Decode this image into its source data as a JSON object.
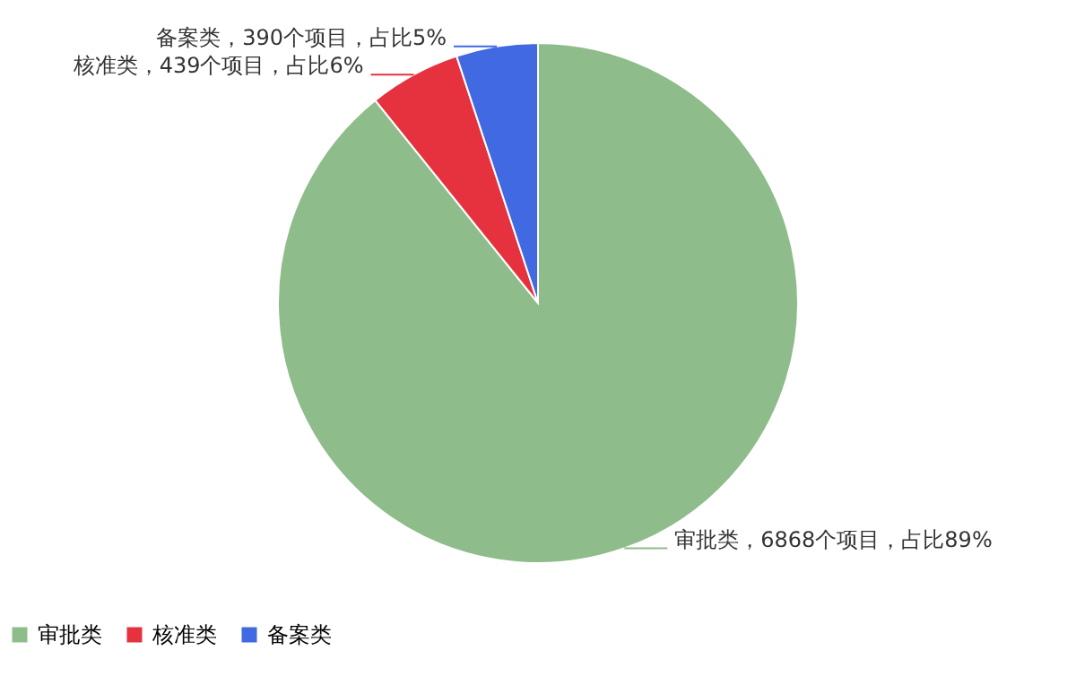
{
  "chart_data": {
    "type": "pie",
    "categories": [
      "审批类",
      "核准类",
      "备案类"
    ],
    "values": [
      6868,
      439,
      390
    ],
    "colors": [
      "#8fbc8b",
      "#e5323e",
      "#4169e1"
    ],
    "value_labels": [
      "审批类，6868个项目，占比89%",
      "核准类，439个项目，占比6%",
      "备案类，390个项目，占比5%"
    ],
    "legend": "bottom"
  }
}
